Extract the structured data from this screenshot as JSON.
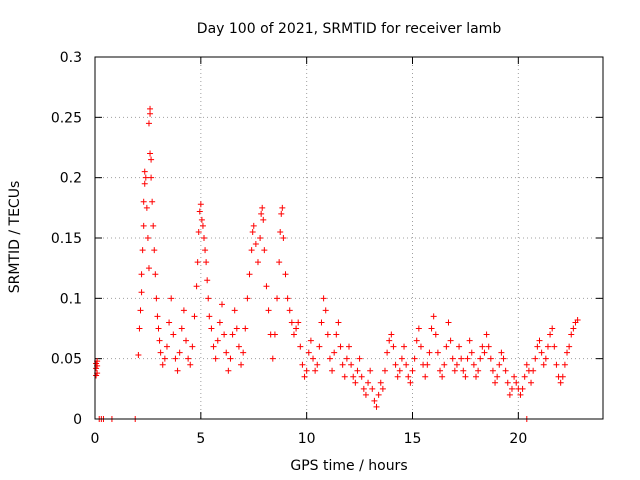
{
  "colors": {
    "series": "#ff0000",
    "grid": "#a0a0a0",
    "axis": "#000000"
  },
  "chart_data": {
    "type": "scatter",
    "title": "Day 100 of 2021, SRMTID for receiver lamb",
    "xlabel": "GPS time / hours",
    "ylabel": "SRMTID / TECUs",
    "xlim": [
      0,
      24
    ],
    "ylim": [
      0,
      0.3
    ],
    "xticks": [
      0,
      5,
      10,
      15,
      20
    ],
    "xtick_labels": [
      "0",
      "5",
      "10",
      "15",
      "20"
    ],
    "yticks": [
      0,
      0.05,
      0.1,
      0.15,
      0.2,
      0.25,
      0.3
    ],
    "ytick_labels": [
      "0",
      "0.05",
      "0.1",
      "0.15",
      "0.2",
      "0.25",
      "0.3"
    ],
    "grid": true,
    "marker": "+",
    "series": [
      {
        "name": "SRMTID",
        "points": [
          [
            0.05,
            0.036
          ],
          [
            0.05,
            0.042
          ],
          [
            0.05,
            0.046
          ],
          [
            0.1,
            0.038
          ],
          [
            0.1,
            0.044
          ],
          [
            0.1,
            0.048
          ],
          [
            0.2,
            0
          ],
          [
            0.3,
            0
          ],
          [
            0.4,
            0
          ],
          [
            0.8,
            0
          ],
          [
            1.9,
            0
          ],
          [
            20.4,
            0
          ],
          [
            2.05,
            0.053
          ],
          [
            2.1,
            0.075
          ],
          [
            2.15,
            0.09
          ],
          [
            2.2,
            0.105
          ],
          [
            2.2,
            0.12
          ],
          [
            2.25,
            0.14
          ],
          [
            2.3,
            0.16
          ],
          [
            2.3,
            0.18
          ],
          [
            2.35,
            0.195
          ],
          [
            2.35,
            0.205
          ],
          [
            2.4,
            0.2
          ],
          [
            2.45,
            0.175
          ],
          [
            2.5,
            0.15
          ],
          [
            2.55,
            0.125
          ],
          [
            2.55,
            0.245
          ],
          [
            2.6,
            0.253
          ],
          [
            2.6,
            0.257
          ],
          [
            2.6,
            0.22
          ],
          [
            2.65,
            0.215
          ],
          [
            2.65,
            0.2
          ],
          [
            2.7,
            0.18
          ],
          [
            2.75,
            0.16
          ],
          [
            2.8,
            0.14
          ],
          [
            2.85,
            0.12
          ],
          [
            2.9,
            0.1
          ],
          [
            2.95,
            0.085
          ],
          [
            3.0,
            0.075
          ],
          [
            3.05,
            0.065
          ],
          [
            3.1,
            0.055
          ],
          [
            3.2,
            0.045
          ],
          [
            3.3,
            0.05
          ],
          [
            3.4,
            0.06
          ],
          [
            3.5,
            0.08
          ],
          [
            3.6,
            0.1
          ],
          [
            3.7,
            0.07
          ],
          [
            3.8,
            0.05
          ],
          [
            3.9,
            0.04
          ],
          [
            4.0,
            0.055
          ],
          [
            4.1,
            0.075
          ],
          [
            4.2,
            0.09
          ],
          [
            4.3,
            0.065
          ],
          [
            4.4,
            0.05
          ],
          [
            4.5,
            0.045
          ],
          [
            4.6,
            0.06
          ],
          [
            4.7,
            0.085
          ],
          [
            4.8,
            0.11
          ],
          [
            4.85,
            0.13
          ],
          [
            4.9,
            0.155
          ],
          [
            4.95,
            0.172
          ],
          [
            5.0,
            0.178
          ],
          [
            5.05,
            0.165
          ],
          [
            5.1,
            0.16
          ],
          [
            5.15,
            0.15
          ],
          [
            5.2,
            0.14
          ],
          [
            5.25,
            0.13
          ],
          [
            5.3,
            0.115
          ],
          [
            5.35,
            0.1
          ],
          [
            5.4,
            0.085
          ],
          [
            5.5,
            0.075
          ],
          [
            5.6,
            0.06
          ],
          [
            5.7,
            0.05
          ],
          [
            5.8,
            0.065
          ],
          [
            5.9,
            0.08
          ],
          [
            6.0,
            0.095
          ],
          [
            6.1,
            0.07
          ],
          [
            6.2,
            0.055
          ],
          [
            6.3,
            0.04
          ],
          [
            6.4,
            0.05
          ],
          [
            6.5,
            0.07
          ],
          [
            6.6,
            0.09
          ],
          [
            6.7,
            0.075
          ],
          [
            6.8,
            0.06
          ],
          [
            6.9,
            0.045
          ],
          [
            7.0,
            0.055
          ],
          [
            7.1,
            0.075
          ],
          [
            7.2,
            0.1
          ],
          [
            7.3,
            0.12
          ],
          [
            7.4,
            0.14
          ],
          [
            7.45,
            0.155
          ],
          [
            7.5,
            0.16
          ],
          [
            7.6,
            0.145
          ],
          [
            7.7,
            0.13
          ],
          [
            7.8,
            0.15
          ],
          [
            7.85,
            0.17
          ],
          [
            7.9,
            0.175
          ],
          [
            7.95,
            0.165
          ],
          [
            8.0,
            0.14
          ],
          [
            8.1,
            0.11
          ],
          [
            8.2,
            0.09
          ],
          [
            8.3,
            0.07
          ],
          [
            8.4,
            0.05
          ],
          [
            8.5,
            0.07
          ],
          [
            8.6,
            0.1
          ],
          [
            8.7,
            0.13
          ],
          [
            8.75,
            0.155
          ],
          [
            8.8,
            0.17
          ],
          [
            8.85,
            0.175
          ],
          [
            8.9,
            0.15
          ],
          [
            9.0,
            0.12
          ],
          [
            9.1,
            0.1
          ],
          [
            9.2,
            0.09
          ],
          [
            9.3,
            0.08
          ],
          [
            9.4,
            0.07
          ],
          [
            9.5,
            0.075
          ],
          [
            9.6,
            0.08
          ],
          [
            9.7,
            0.06
          ],
          [
            9.8,
            0.045
          ],
          [
            9.9,
            0.035
          ],
          [
            10.0,
            0.04
          ],
          [
            10.1,
            0.055
          ],
          [
            10.2,
            0.065
          ],
          [
            10.3,
            0.05
          ],
          [
            10.4,
            0.04
          ],
          [
            10.5,
            0.045
          ],
          [
            10.6,
            0.06
          ],
          [
            10.7,
            0.08
          ],
          [
            10.8,
            0.1
          ],
          [
            10.9,
            0.09
          ],
          [
            11.0,
            0.07
          ],
          [
            11.1,
            0.05
          ],
          [
            11.2,
            0.04
          ],
          [
            11.3,
            0.055
          ],
          [
            11.4,
            0.07
          ],
          [
            11.5,
            0.08
          ],
          [
            11.6,
            0.06
          ],
          [
            11.7,
            0.045
          ],
          [
            11.8,
            0.035
          ],
          [
            11.9,
            0.05
          ],
          [
            12.0,
            0.06
          ],
          [
            12.1,
            0.045
          ],
          [
            12.2,
            0.035
          ],
          [
            12.3,
            0.03
          ],
          [
            12.4,
            0.04
          ],
          [
            12.5,
            0.05
          ],
          [
            12.6,
            0.035
          ],
          [
            12.7,
            0.025
          ],
          [
            12.8,
            0.02
          ],
          [
            12.9,
            0.03
          ],
          [
            13.0,
            0.04
          ],
          [
            13.1,
            0.025
          ],
          [
            13.2,
            0.015
          ],
          [
            13.3,
            0.01
          ],
          [
            13.4,
            0.02
          ],
          [
            13.5,
            0.03
          ],
          [
            13.6,
            0.025
          ],
          [
            13.7,
            0.04
          ],
          [
            13.8,
            0.055
          ],
          [
            13.9,
            0.065
          ],
          [
            14.0,
            0.07
          ],
          [
            14.1,
            0.06
          ],
          [
            14.2,
            0.045
          ],
          [
            14.3,
            0.035
          ],
          [
            14.4,
            0.04
          ],
          [
            14.5,
            0.05
          ],
          [
            14.6,
            0.06
          ],
          [
            14.7,
            0.045
          ],
          [
            14.8,
            0.035
          ],
          [
            14.9,
            0.03
          ],
          [
            15.0,
            0.04
          ],
          [
            15.1,
            0.05
          ],
          [
            15.2,
            0.065
          ],
          [
            15.3,
            0.075
          ],
          [
            15.4,
            0.06
          ],
          [
            15.5,
            0.045
          ],
          [
            15.6,
            0.035
          ],
          [
            15.7,
            0.045
          ],
          [
            15.8,
            0.055
          ],
          [
            15.9,
            0.075
          ],
          [
            16.0,
            0.085
          ],
          [
            16.1,
            0.07
          ],
          [
            16.2,
            0.055
          ],
          [
            16.3,
            0.04
          ],
          [
            16.4,
            0.035
          ],
          [
            16.5,
            0.045
          ],
          [
            16.6,
            0.06
          ],
          [
            16.7,
            0.08
          ],
          [
            16.8,
            0.065
          ],
          [
            16.9,
            0.05
          ],
          [
            17.0,
            0.04
          ],
          [
            17.1,
            0.045
          ],
          [
            17.2,
            0.06
          ],
          [
            17.3,
            0.05
          ],
          [
            17.4,
            0.04
          ],
          [
            17.5,
            0.035
          ],
          [
            17.6,
            0.05
          ],
          [
            17.7,
            0.065
          ],
          [
            17.8,
            0.055
          ],
          [
            17.9,
            0.045
          ],
          [
            18.0,
            0.035
          ],
          [
            18.1,
            0.04
          ],
          [
            18.2,
            0.05
          ],
          [
            18.3,
            0.06
          ],
          [
            18.4,
            0.055
          ],
          [
            18.5,
            0.07
          ],
          [
            18.6,
            0.06
          ],
          [
            18.7,
            0.05
          ],
          [
            18.8,
            0.04
          ],
          [
            18.9,
            0.03
          ],
          [
            19.0,
            0.035
          ],
          [
            19.1,
            0.045
          ],
          [
            19.2,
            0.055
          ],
          [
            19.3,
            0.05
          ],
          [
            19.4,
            0.04
          ],
          [
            19.5,
            0.03
          ],
          [
            19.6,
            0.02
          ],
          [
            19.7,
            0.025
          ],
          [
            19.8,
            0.035
          ],
          [
            19.9,
            0.03
          ],
          [
            20.0,
            0.025
          ],
          [
            20.1,
            0.02
          ],
          [
            20.2,
            0.025
          ],
          [
            20.3,
            0.035
          ],
          [
            20.4,
            0.045
          ],
          [
            20.5,
            0.04
          ],
          [
            20.6,
            0.03
          ],
          [
            20.7,
            0.04
          ],
          [
            20.8,
            0.05
          ],
          [
            20.9,
            0.06
          ],
          [
            21.0,
            0.065
          ],
          [
            21.1,
            0.055
          ],
          [
            21.2,
            0.045
          ],
          [
            21.3,
            0.05
          ],
          [
            21.4,
            0.06
          ],
          [
            21.5,
            0.07
          ],
          [
            21.6,
            0.075
          ],
          [
            21.7,
            0.06
          ],
          [
            21.8,
            0.045
          ],
          [
            21.9,
            0.035
          ],
          [
            22.0,
            0.03
          ],
          [
            22.1,
            0.035
          ],
          [
            22.2,
            0.045
          ],
          [
            22.3,
            0.055
          ],
          [
            22.4,
            0.06
          ],
          [
            22.5,
            0.07
          ],
          [
            22.6,
            0.075
          ],
          [
            22.7,
            0.08
          ],
          [
            22.8,
            0.082
          ]
        ]
      }
    ]
  }
}
